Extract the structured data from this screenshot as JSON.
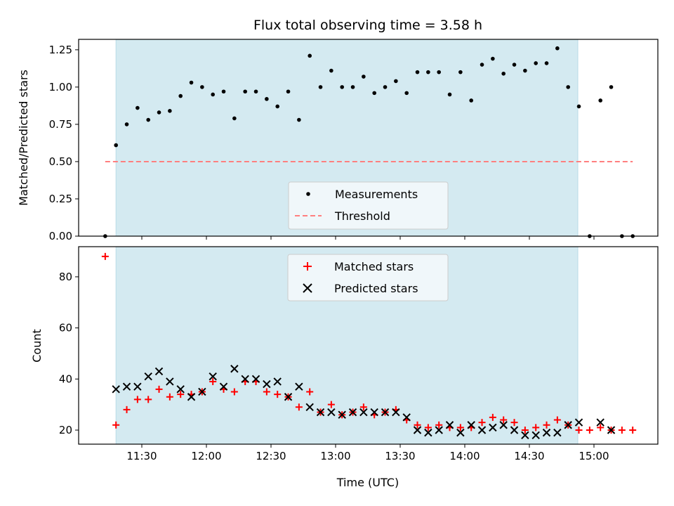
{
  "chart_data": [
    {
      "type": "scatter",
      "title": "Flux total observing time = 3.58 h",
      "xlabel": "",
      "ylabel": "Matched/Predicted stars",
      "ylim": [
        0,
        1.32
      ],
      "xlim": [
        "11:00",
        "15:30"
      ],
      "yticks": [
        "0.00",
        "0.25",
        "0.50",
        "0.75",
        "1.00",
        "1.25"
      ],
      "shaded_span": [
        "11:18",
        "14:52"
      ],
      "threshold": 0.5,
      "legend": {
        "placement": "lower-center",
        "entries": [
          "Measurements",
          "Threshold"
        ]
      },
      "series": [
        {
          "name": "Measurements",
          "color": "#000000",
          "values": [
            0.0,
            0.61,
            0.75,
            0.86,
            0.78,
            0.83,
            0.84,
            0.94,
            1.03,
            1.0,
            0.95,
            0.97,
            0.79,
            0.97,
            0.97,
            0.92,
            0.87,
            0.97,
            0.78,
            1.21,
            1.0,
            1.11,
            1.0,
            1.0,
            1.07,
            0.96,
            1.0,
            1.04,
            0.96,
            1.1,
            1.1,
            1.1,
            0.95,
            1.1,
            0.91,
            1.15,
            1.19,
            1.09,
            1.15,
            1.11,
            1.16,
            1.16,
            1.26,
            1.0,
            0.87,
            0.0,
            0.91,
            1.0,
            0.0,
            0.0
          ]
        },
        {
          "name": "Threshold",
          "color": "#ff7f7f",
          "values": [
            0.5,
            0.5
          ]
        }
      ]
    },
    {
      "type": "scatter",
      "xlabel": "Time (UTC)",
      "ylabel": "Count",
      "ylim": [
        14.5,
        91.8
      ],
      "xlim": [
        "11:00",
        "15:30"
      ],
      "yticks": [
        "20",
        "40",
        "60",
        "80"
      ],
      "xticks": [
        "11:30",
        "12:00",
        "12:30",
        "13:00",
        "13:30",
        "14:00",
        "14:30",
        "15:00"
      ],
      "shaded_span": [
        "11:18",
        "14:52"
      ],
      "legend": {
        "placement": "upper-center",
        "entries": [
          "Matched stars",
          "Predicted stars"
        ]
      },
      "series": [
        {
          "name": "Matched stars",
          "color": "#ff0000",
          "marker": "+",
          "values": [
            88,
            22,
            28,
            32,
            32,
            36,
            33,
            34,
            34,
            35,
            39,
            36,
            35,
            39,
            39,
            35,
            34,
            33,
            29,
            35,
            27,
            30,
            26,
            27,
            29,
            26,
            27,
            28,
            24,
            22,
            21,
            22,
            21,
            21,
            21,
            23,
            25,
            24,
            23,
            20,
            21,
            22,
            24,
            22,
            20,
            20,
            21,
            20,
            20,
            20
          ]
        },
        {
          "name": "Predicted stars",
          "color": "#000000",
          "marker": "x",
          "values": [
            null,
            36,
            37,
            37,
            41,
            43,
            39,
            36,
            33,
            35,
            41,
            37,
            44,
            40,
            40,
            38,
            39,
            33,
            37,
            29,
            27,
            27,
            26,
            27,
            27,
            27,
            27,
            27,
            25,
            20,
            19,
            20,
            22,
            19,
            22,
            20,
            21,
            22,
            20,
            18,
            18,
            19,
            19,
            22,
            23,
            null,
            23,
            20,
            null,
            null
          ]
        }
      ]
    }
  ],
  "x_times": [
    "11:13",
    "11:18",
    "11:23",
    "11:28",
    "11:33",
    "11:38",
    "11:43",
    "11:48",
    "11:53",
    "11:58",
    "12:03",
    "12:08",
    "12:13",
    "12:18",
    "12:23",
    "12:28",
    "12:33",
    "12:38",
    "12:43",
    "12:48",
    "12:53",
    "12:58",
    "13:03",
    "13:08",
    "13:13",
    "13:18",
    "13:23",
    "13:28",
    "13:33",
    "13:38",
    "13:43",
    "13:48",
    "13:53",
    "13:58",
    "14:03",
    "14:08",
    "14:13",
    "14:18",
    "14:23",
    "14:28",
    "14:33",
    "14:38",
    "14:43",
    "14:48",
    "14:53",
    "14:58",
    "15:03",
    "15:08",
    "15:13",
    "15:18"
  ],
  "colors": {
    "span": "#d4eaf1",
    "span_edge": "#b9dbe8",
    "threshold": "#ff7f7f",
    "matched": "#ff0000",
    "predicted": "#000000"
  }
}
